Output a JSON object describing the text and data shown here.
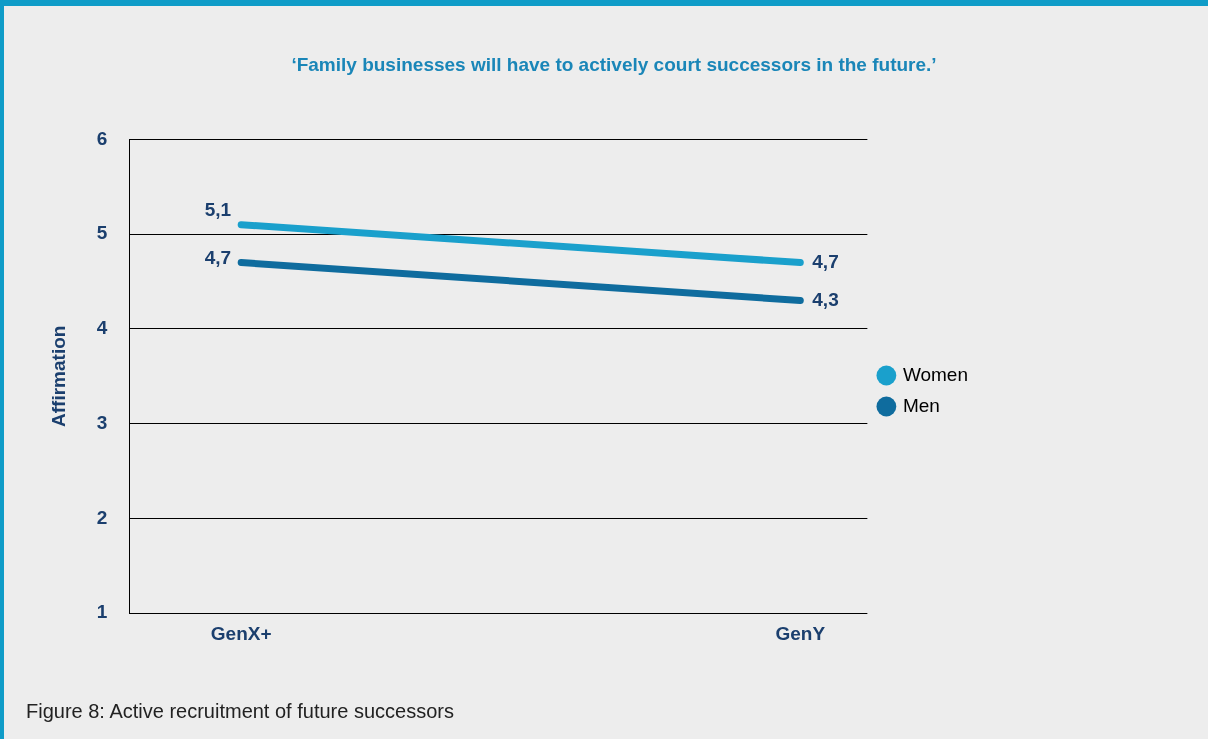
{
  "chart_data": {
    "type": "line",
    "title": "‘Family businesses will have to actively court successors in the future.’",
    "ylabel": "Affirmation",
    "categories": [
      "GenX+",
      "GenY"
    ],
    "series": [
      {
        "name": "Women",
        "color": "#1aa0cc",
        "values": [
          5.1,
          4.7
        ],
        "value_labels": [
          "5,1",
          "4,7"
        ]
      },
      {
        "name": "Men",
        "color": "#0f6c9e",
        "values": [
          4.7,
          4.3
        ],
        "value_labels": [
          "4,7",
          "4,3"
        ]
      }
    ],
    "ylim": [
      1,
      6
    ],
    "yticks": [
      1,
      2,
      3,
      4,
      5,
      6
    ],
    "grid": "y",
    "legend": "right",
    "marker": "none",
    "line_style": "solid",
    "annotations": [
      "Figure 8: Active recruitment of future successors"
    ]
  }
}
